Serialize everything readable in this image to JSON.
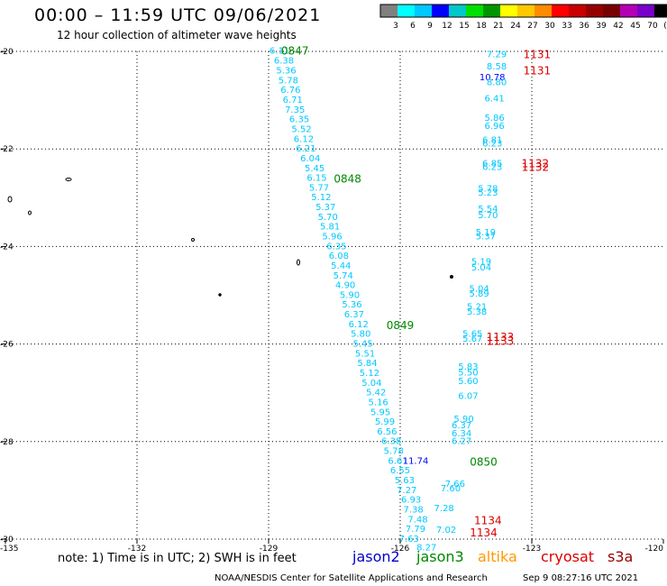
{
  "title": "00:00 – 11:59 UTC 09/06/2021",
  "subtitle": "12 hour collection of altimeter wave heights",
  "note": "note: 1) Time is in UTC; 2) SWH is in feet",
  "footer": "NOAA/NESDIS Center for Satellite Applications and Research",
  "footer_time": "Sep  9 08:27:16 UTC 2021",
  "legend": {
    "colors": [
      "#808080",
      "#00ffff",
      "#00c8ff",
      "#0000ff",
      "#00c8c8",
      "#00e000",
      "#009600",
      "#ffff00",
      "#ffc800",
      "#ff8c00",
      "#ff0000",
      "#c80000",
      "#960000",
      "#780000",
      "#b400b4",
      "#7800c8",
      "#000000"
    ],
    "labels": [
      "3",
      "6",
      "9",
      "12",
      "15",
      "18",
      "21",
      "24",
      "27",
      "30",
      "33",
      "36",
      "39",
      "42",
      "45",
      "70",
      "(ft)"
    ]
  },
  "satellites": [
    {
      "name": "jason2",
      "color": "#0000cc"
    },
    {
      "name": "jason3",
      "color": "#008800"
    },
    {
      "name": "altika",
      "color": "#ff9900"
    },
    {
      "name": "cryosat",
      "color": "#dd0000"
    },
    {
      "name": "s3a",
      "color": "#990000"
    }
  ],
  "axes": {
    "lon_range": [
      -135,
      -120
    ],
    "lat_range": [
      -30,
      -20
    ],
    "lon_ticks": [
      "-135",
      "-132",
      "-129",
      "-126",
      "-123",
      "-120"
    ],
    "lat_ticks": [
      "-20",
      "-22",
      "-24",
      "-26",
      "-28",
      "-30"
    ]
  },
  "track_labels": [
    {
      "time": "0847",
      "lon": -128.4,
      "lat": -19.97,
      "color": "#008800"
    },
    {
      "time": "0848",
      "lon": -127.2,
      "lat": -22.6,
      "color": "#008800"
    },
    {
      "time": "0849",
      "lon": -126.0,
      "lat": -25.6,
      "color": "#008800"
    },
    {
      "time": "0850",
      "lon": -124.1,
      "lat": -28.4,
      "color": "#008800"
    },
    {
      "time": "1131",
      "lon": -122.88,
      "lat": -20.05,
      "color": "#dd0000"
    },
    {
      "time": "1131",
      "lon": -122.88,
      "lat": -20.38,
      "color": "#dd0000"
    },
    {
      "time": "1132",
      "lon": -122.92,
      "lat": -22.28,
      "color": "#dd0000"
    },
    {
      "time": "1132",
      "lon": -122.92,
      "lat": -22.36,
      "color": "#dd0000"
    },
    {
      "time": "1133",
      "lon": -123.72,
      "lat": -25.84,
      "color": "#dd0000"
    },
    {
      "time": "1133",
      "lon": -123.72,
      "lat": -25.92,
      "color": "#dd0000"
    },
    {
      "time": "1134",
      "lon": -124.0,
      "lat": -29.6,
      "color": "#dd0000"
    },
    {
      "time": "1134",
      "lon": -124.1,
      "lat": -29.85,
      "color": "#dd0000"
    }
  ],
  "swh": [
    {
      "v": "6.11",
      "lon": -128.75,
      "lat": -19.97,
      "c": "#00c8ff"
    },
    {
      "v": "6.38",
      "lon": -128.65,
      "lat": -20.18,
      "c": "#00c8ff"
    },
    {
      "v": "5.36",
      "lon": -128.6,
      "lat": -20.38,
      "c": "#00c8ff"
    },
    {
      "v": "5.78",
      "lon": -128.55,
      "lat": -20.58,
      "c": "#00c8ff"
    },
    {
      "v": "6.76",
      "lon": -128.5,
      "lat": -20.78,
      "c": "#00c8ff"
    },
    {
      "v": "6.71",
      "lon": -128.45,
      "lat": -20.98,
      "c": "#00c8ff"
    },
    {
      "v": "7.35",
      "lon": -128.4,
      "lat": -21.18,
      "c": "#00c8ff"
    },
    {
      "v": "6.35",
      "lon": -128.3,
      "lat": -21.38,
      "c": "#00c8ff"
    },
    {
      "v": "5.52",
      "lon": -128.25,
      "lat": -21.58,
      "c": "#00c8ff"
    },
    {
      "v": "6.12",
      "lon": -128.2,
      "lat": -21.78,
      "c": "#00c8ff"
    },
    {
      "v": "6.21",
      "lon": -128.15,
      "lat": -21.98,
      "c": "#00c8ff"
    },
    {
      "v": "6.04",
      "lon": -128.05,
      "lat": -22.18,
      "c": "#00c8ff"
    },
    {
      "v": "5.45",
      "lon": -127.95,
      "lat": -22.38,
      "c": "#00c8ff"
    },
    {
      "v": "6.15",
      "lon": -127.9,
      "lat": -22.58,
      "c": "#00c8ff"
    },
    {
      "v": "5.77",
      "lon": -127.85,
      "lat": -22.78,
      "c": "#00c8ff"
    },
    {
      "v": "5.12",
      "lon": -127.8,
      "lat": -22.98,
      "c": "#00c8ff"
    },
    {
      "v": "5.37",
      "lon": -127.7,
      "lat": -23.18,
      "c": "#00c8ff"
    },
    {
      "v": "5.70",
      "lon": -127.65,
      "lat": -23.38,
      "c": "#00c8ff"
    },
    {
      "v": "5.81",
      "lon": -127.6,
      "lat": -23.58,
      "c": "#00c8ff"
    },
    {
      "v": "5.96",
      "lon": -127.55,
      "lat": -23.78,
      "c": "#00c8ff"
    },
    {
      "v": "6.35",
      "lon": -127.45,
      "lat": -23.98,
      "c": "#00c8ff"
    },
    {
      "v": "6.08",
      "lon": -127.4,
      "lat": -24.18,
      "c": "#00c8ff"
    },
    {
      "v": "5.44",
      "lon": -127.35,
      "lat": -24.38,
      "c": "#00c8ff"
    },
    {
      "v": "5.74",
      "lon": -127.3,
      "lat": -24.58,
      "c": "#00c8ff"
    },
    {
      "v": "4.90",
      "lon": -127.25,
      "lat": -24.78,
      "c": "#00c8ff"
    },
    {
      "v": "5.90",
      "lon": -127.15,
      "lat": -24.98,
      "c": "#00c8ff"
    },
    {
      "v": "5.36",
      "lon": -127.1,
      "lat": -25.18,
      "c": "#00c8ff"
    },
    {
      "v": "6.37",
      "lon": -127.05,
      "lat": -25.38,
      "c": "#00c8ff"
    },
    {
      "v": "6.12",
      "lon": -126.95,
      "lat": -25.58,
      "c": "#00c8ff"
    },
    {
      "v": "5.80",
      "lon": -126.9,
      "lat": -25.78,
      "c": "#00c8ff"
    },
    {
      "v": "5.45",
      "lon": -126.85,
      "lat": -25.98,
      "c": "#00c8ff"
    },
    {
      "v": "5.51",
      "lon": -126.8,
      "lat": -26.18,
      "c": "#00c8ff"
    },
    {
      "v": "5.84",
      "lon": -126.75,
      "lat": -26.38,
      "c": "#00c8ff"
    },
    {
      "v": "5.12",
      "lon": -126.7,
      "lat": -26.58,
      "c": "#00c8ff"
    },
    {
      "v": "5.04",
      "lon": -126.65,
      "lat": -26.78,
      "c": "#00c8ff"
    },
    {
      "v": "5.42",
      "lon": -126.55,
      "lat": -26.98,
      "c": "#00c8ff"
    },
    {
      "v": "5.16",
      "lon": -126.5,
      "lat": -27.18,
      "c": "#00c8ff"
    },
    {
      "v": "5.95",
      "lon": -126.45,
      "lat": -27.38,
      "c": "#00c8ff"
    },
    {
      "v": "5.99",
      "lon": -126.35,
      "lat": -27.58,
      "c": "#00c8ff"
    },
    {
      "v": "6.56",
      "lon": -126.3,
      "lat": -27.78,
      "c": "#00c8ff"
    },
    {
      "v": "6.38",
      "lon": -126.2,
      "lat": -27.98,
      "c": "#00c8ff"
    },
    {
      "v": "5.78",
      "lon": -126.15,
      "lat": -28.18,
      "c": "#00c8ff"
    },
    {
      "v": "6.61",
      "lon": -126.05,
      "lat": -28.38,
      "c": "#00c8ff"
    },
    {
      "v": "6.55",
      "lon": -126.0,
      "lat": -28.58,
      "c": "#00c8ff"
    },
    {
      "v": "5.63",
      "lon": -125.9,
      "lat": -28.78,
      "c": "#00c8ff"
    },
    {
      "v": "7.27",
      "lon": -125.85,
      "lat": -28.98,
      "c": "#00c8ff"
    },
    {
      "v": "6.93",
      "lon": -125.75,
      "lat": -29.18,
      "c": "#00c8ff"
    },
    {
      "v": "7.38",
      "lon": -125.7,
      "lat": -29.38,
      "c": "#00c8ff"
    },
    {
      "v": "7.48",
      "lon": -125.6,
      "lat": -29.58,
      "c": "#00c8ff"
    },
    {
      "v": "7.79",
      "lon": -125.65,
      "lat": -29.78,
      "c": "#00c8ff"
    },
    {
      "v": "7.63",
      "lon": -125.8,
      "lat": -29.98,
      "c": "#00c8ff"
    },
    {
      "v": "8.27",
      "lon": -125.4,
      "lat": -30.16,
      "c": "#00c8ff"
    },
    {
      "v": "11.74",
      "lon": -125.65,
      "lat": -28.38,
      "c": "#0000ff"
    },
    {
      "v": "7.29",
      "lon": -123.8,
      "lat": -20.05,
      "c": "#00c8ff"
    },
    {
      "v": "8.58",
      "lon": -123.8,
      "lat": -20.3,
      "c": "#00c8ff"
    },
    {
      "v": "10.78",
      "lon": -123.9,
      "lat": -20.52,
      "c": "#0000ff"
    },
    {
      "v": "8.80",
      "lon": -123.8,
      "lat": -20.62,
      "c": "#00c8ff"
    },
    {
      "v": "6.41",
      "lon": -123.85,
      "lat": -20.95,
      "c": "#00c8ff"
    },
    {
      "v": "5.86",
      "lon": -123.85,
      "lat": -21.35,
      "c": "#00c8ff"
    },
    {
      "v": "6.96",
      "lon": -123.85,
      "lat": -21.52,
      "c": "#00c8ff"
    },
    {
      "v": "6.81",
      "lon": -123.9,
      "lat": -21.8,
      "c": "#00c8ff"
    },
    {
      "v": "6.23",
      "lon": -123.9,
      "lat": -21.88,
      "c": "#00c8ff"
    },
    {
      "v": "6.85",
      "lon": -123.9,
      "lat": -22.28,
      "c": "#00c8ff"
    },
    {
      "v": "6.23",
      "lon": -123.9,
      "lat": -22.36,
      "c": "#00c8ff"
    },
    {
      "v": "5.78",
      "lon": -124.0,
      "lat": -22.8,
      "c": "#00c8ff"
    },
    {
      "v": "5.23",
      "lon": -124.0,
      "lat": -22.88,
      "c": "#00c8ff"
    },
    {
      "v": "5.54",
      "lon": -124.0,
      "lat": -23.22,
      "c": "#00c8ff"
    },
    {
      "v": "5.70",
      "lon": -124.0,
      "lat": -23.35,
      "c": "#00c8ff"
    },
    {
      "v": "5.19",
      "lon": -124.05,
      "lat": -23.7,
      "c": "#00c8ff"
    },
    {
      "v": "5.37",
      "lon": -124.05,
      "lat": -23.78,
      "c": "#00c8ff"
    },
    {
      "v": "5.19",
      "lon": -124.15,
      "lat": -24.3,
      "c": "#00c8ff"
    },
    {
      "v": "5.04",
      "lon": -124.15,
      "lat": -24.42,
      "c": "#00c8ff"
    },
    {
      "v": "5.04",
      "lon": -124.2,
      "lat": -24.85,
      "c": "#00c8ff"
    },
    {
      "v": "5.89",
      "lon": -124.2,
      "lat": -24.95,
      "c": "#00c8ff"
    },
    {
      "v": "5.21",
      "lon": -124.25,
      "lat": -25.22,
      "c": "#00c8ff"
    },
    {
      "v": "5.38",
      "lon": -124.25,
      "lat": -25.32,
      "c": "#00c8ff"
    },
    {
      "v": "5.65",
      "lon": -124.35,
      "lat": -25.78,
      "c": "#00c8ff"
    },
    {
      "v": "5.67",
      "lon": -124.35,
      "lat": -25.88,
      "c": "#00c8ff"
    },
    {
      "v": "5.83",
      "lon": -124.45,
      "lat": -26.45,
      "c": "#00c8ff"
    },
    {
      "v": "5.50",
      "lon": -124.45,
      "lat": -26.57,
      "c": "#00c8ff"
    },
    {
      "v": "5.60",
      "lon": -124.45,
      "lat": -26.75,
      "c": "#00c8ff"
    },
    {
      "v": "6.07",
      "lon": -124.45,
      "lat": -27.05,
      "c": "#00c8ff"
    },
    {
      "v": "5.90",
      "lon": -124.55,
      "lat": -27.52,
      "c": "#00c8ff"
    },
    {
      "v": "6.37",
      "lon": -124.6,
      "lat": -27.65,
      "c": "#00c8ff"
    },
    {
      "v": "6.34",
      "lon": -124.6,
      "lat": -27.82,
      "c": "#00c8ff"
    },
    {
      "v": "6.27",
      "lon": -124.6,
      "lat": -27.98,
      "c": "#00c8ff"
    },
    {
      "v": "7.66",
      "lon": -124.75,
      "lat": -28.85,
      "c": "#00c8ff"
    },
    {
      "v": "7.60",
      "lon": -124.85,
      "lat": -28.95,
      "c": "#00c8ff"
    },
    {
      "v": "7.28",
      "lon": -125.0,
      "lat": -29.35,
      "c": "#00c8ff"
    },
    {
      "v": "7.02",
      "lon": -124.95,
      "lat": -29.8,
      "c": "#00c8ff"
    }
  ]
}
